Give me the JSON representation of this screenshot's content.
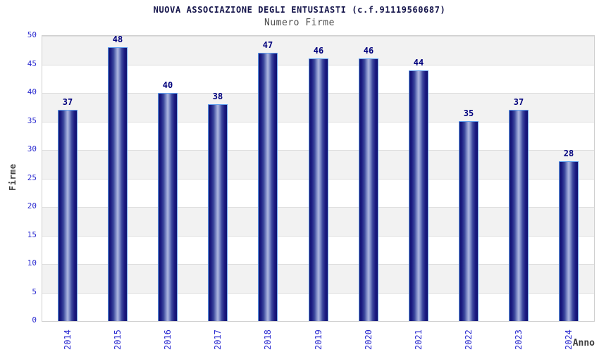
{
  "chart_data": {
    "type": "bar",
    "title": "NUOVA ASSOCIAZIONE DEGLI ENTUSIASTI (c.f.91119560687)",
    "subtitle": "Numero Firme",
    "categories": [
      "2014",
      "2015",
      "2016",
      "2017",
      "2018",
      "2019",
      "2020",
      "2021",
      "2022",
      "2023",
      "2024"
    ],
    "values": [
      37,
      48,
      40,
      38,
      47,
      46,
      46,
      44,
      35,
      37,
      28
    ],
    "xlabel": "Anno",
    "ylabel": "Firme",
    "ylim": [
      0,
      50
    ],
    "ytick_step": 5,
    "yticks": [
      0,
      5,
      10,
      15,
      20,
      25,
      30,
      35,
      40,
      45,
      50
    ],
    "grid": "alternating-horizontal-bands",
    "legend": "none",
    "bar_value_labels": true
  },
  "colors": {
    "tick_label_blue": "#2b2bd0",
    "bar_value_navy": "#00007d",
    "title_navy": "#14144a",
    "subtitle_gray": "#4d4d4d",
    "axis_title_gray": "#3c3c3c",
    "band_gray": "#f2f2f2",
    "band_white": "#ffffff",
    "plot_border": "#cfcfcf",
    "bar_dark": "#11116e",
    "bar_highlight": "#aeb6e0",
    "bar_outline": "#63a2f0"
  }
}
